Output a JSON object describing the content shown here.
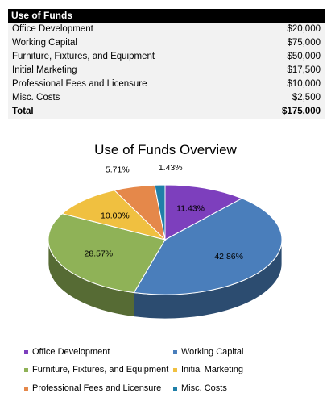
{
  "table": {
    "header": "Use of Funds",
    "rows": [
      {
        "label": "Office Development",
        "value": "$20,000"
      },
      {
        "label": "Working Capital",
        "value": "$75,000"
      },
      {
        "label": "Furniture, Fixtures, and Equipment",
        "value": "$50,000"
      },
      {
        "label": "Initial Marketing",
        "value": "$17,500"
      },
      {
        "label": "Professional Fees and Licensure",
        "value": "$10,000"
      },
      {
        "label": "Misc. Costs",
        "value": "$2,500"
      }
    ],
    "total_label": "Total",
    "total_value": "$175,000"
  },
  "chart_data": {
    "type": "pie",
    "title": "Use of Funds Overview",
    "categories": [
      "Office Development",
      "Working Capital",
      "Furniture, Fixtures, and Equipment",
      "Initial Marketing",
      "Professional Fees and Licensure",
      "Misc. Costs"
    ],
    "values": [
      20000,
      75000,
      50000,
      17500,
      10000,
      2500
    ],
    "labels": [
      "11.43%",
      "42.86%",
      "28.57%",
      "10.00%",
      "5.71%",
      "1.43%"
    ],
    "colors": [
      "#7d3fbd",
      "#4a7ebb",
      "#8fb257",
      "#f0c040",
      "#e5884a",
      "#1f7fa8"
    ],
    "legend_position": "bottom"
  }
}
